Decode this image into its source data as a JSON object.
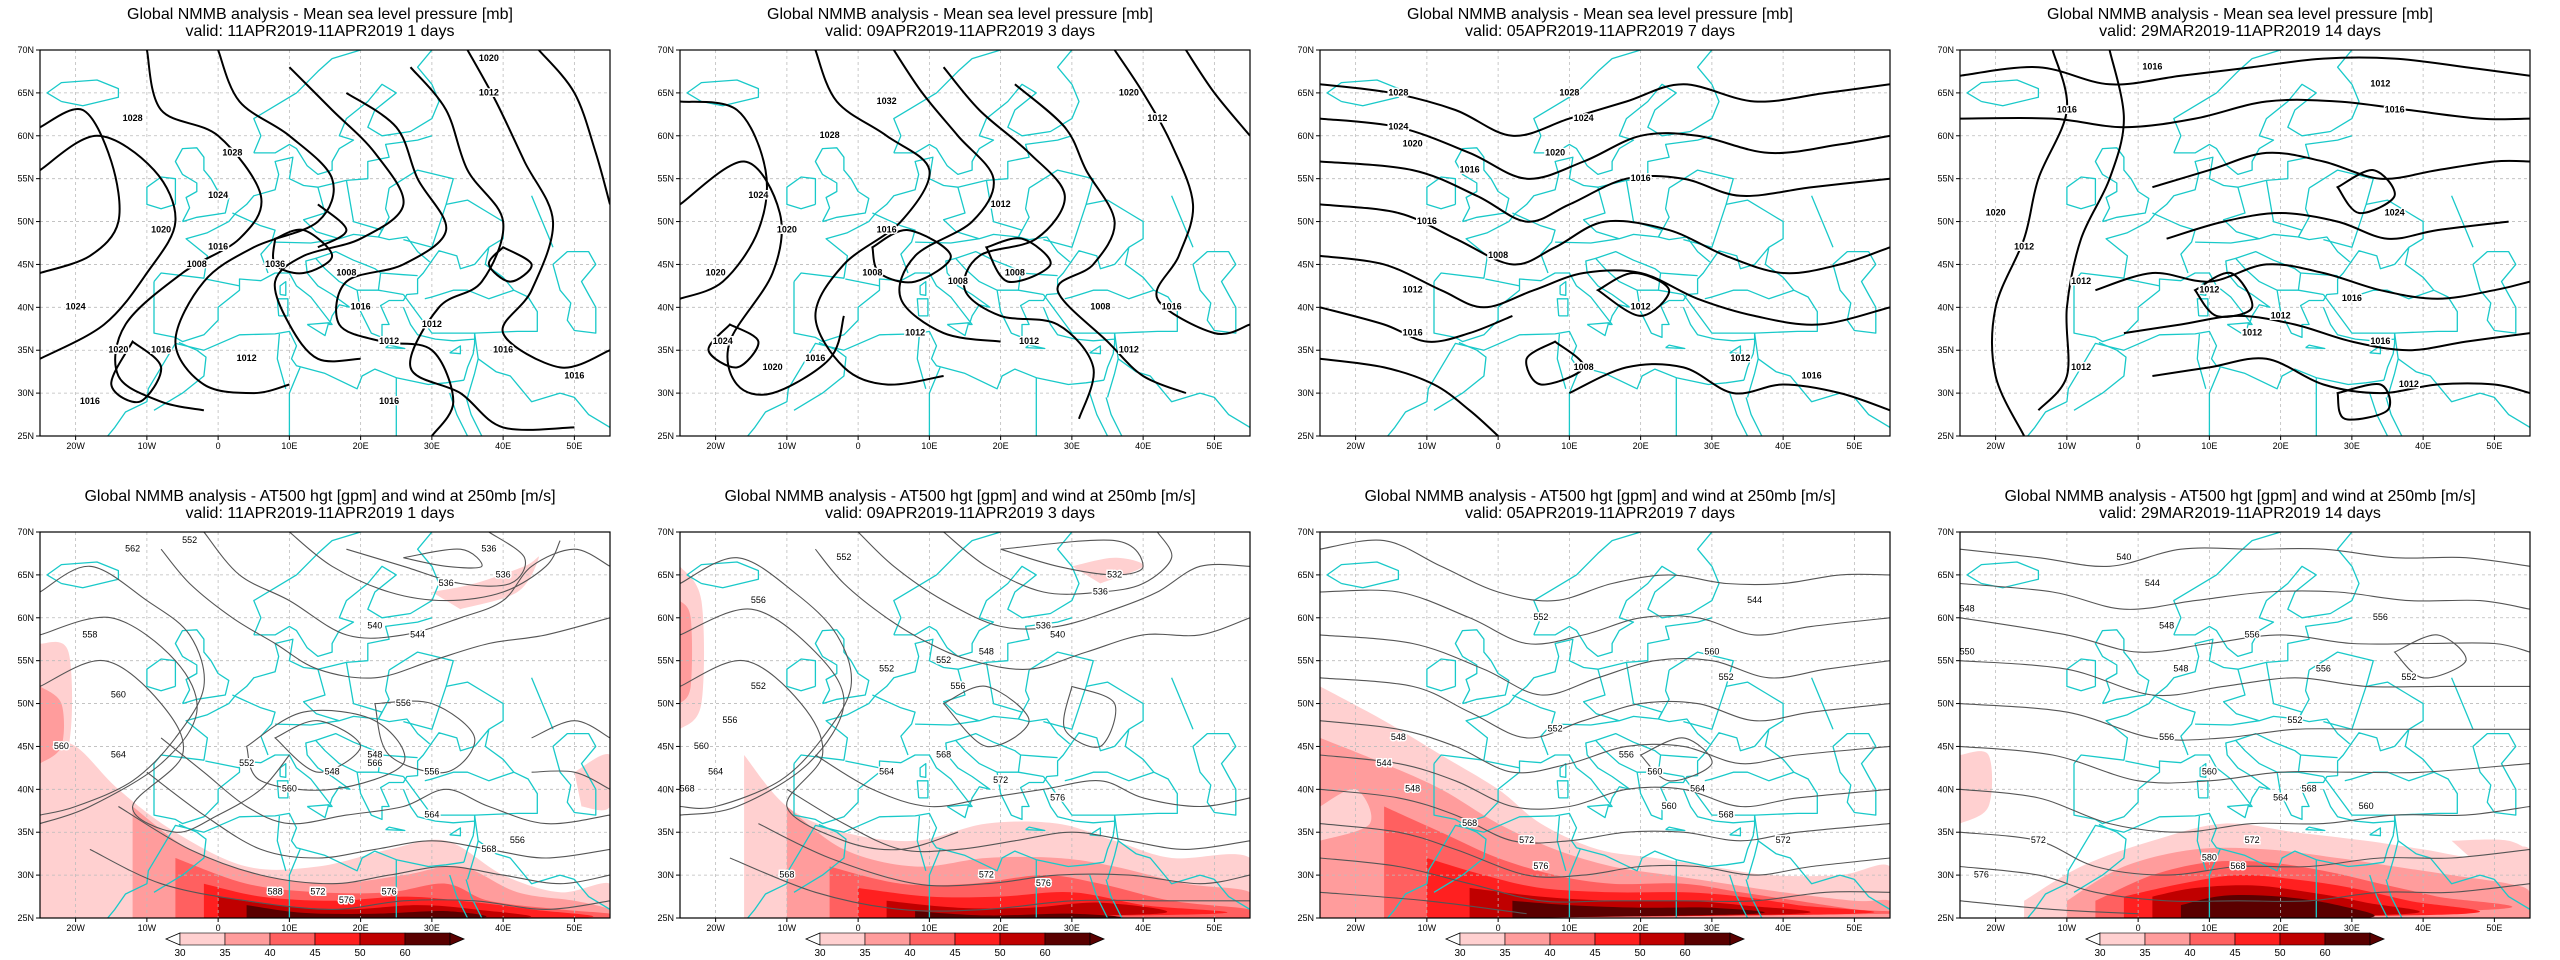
{
  "colors": {
    "coast": "#19c9c9",
    "isobar": "#000000",
    "height": "#555555",
    "grid": "#bbbbbb",
    "wind": [
      "#ffd0d0",
      "#ff9c9c",
      "#ff6060",
      "#ff2020",
      "#c00000",
      "#5a0000"
    ]
  },
  "axes": {
    "lat_ticks": [
      "70N",
      "65N",
      "60N",
      "55N",
      "50N",
      "45N",
      "40N",
      "35N",
      "30N",
      "25N"
    ],
    "lon_ticks": [
      "20W",
      "10W",
      "0",
      "10E",
      "20E",
      "30E",
      "40E",
      "50E"
    ]
  },
  "colorbar": {
    "labels": [
      "30",
      "35",
      "40",
      "45",
      "50",
      "60"
    ]
  },
  "panels": [
    {
      "title": "Global NMMB analysis - Mean sea level pressure [mb]",
      "valid": "valid: 11APR2019-11APR2019  1 days",
      "kind": "slp",
      "labels": [
        "1020",
        "1012",
        "1028",
        "1028",
        "1024",
        "1020",
        "1016",
        "1008",
        "1008",
        "1036",
        "1024",
        "1020",
        "1016",
        "1016",
        "1012",
        "1012",
        "1012",
        "1016",
        "1016",
        "1016",
        "1016"
      ]
    },
    {
      "title": "Global NMMB analysis - Mean sea level pressure [mb]",
      "valid": "valid: 09APR2019-11APR2019  3 days",
      "kind": "slp",
      "labels": [
        "1032",
        "1028",
        "1020",
        "1012",
        "1024",
        "1020",
        "1020",
        "1016",
        "1012",
        "1008",
        "1008",
        "1008",
        "1008",
        "1016",
        "1020",
        "1016",
        "1012",
        "1024",
        "1012",
        "1012"
      ]
    },
    {
      "title": "Global NMMB analysis - Mean sea level pressure [mb]",
      "valid": "valid: 05APR2019-11APR2019  7 days",
      "kind": "slp",
      "labels": [
        "1028",
        "1024",
        "1020",
        "1028",
        "1024",
        "1020",
        "1016",
        "1016",
        "1016",
        "1008",
        "1012",
        "1012",
        "1016",
        "1008",
        "1012",
        "1016"
      ]
    },
    {
      "title": "Global NMMB analysis - Mean sea level pressure [mb]",
      "valid": "valid: 29MAR2019-11APR2019  14 days",
      "kind": "slp",
      "labels": [
        "1016",
        "1016",
        "1012",
        "1016",
        "1024",
        "1020",
        "1012",
        "1012",
        "1012",
        "1012",
        "1016",
        "1016",
        "1012",
        "1012",
        "1012"
      ]
    },
    {
      "title": "Global NMMB analysis - AT500 hgt [gpm] and wind at 250mb [m/s]",
      "valid": "valid: 11APR2019-11APR2019  1 days",
      "kind": "hgt",
      "labels": [
        "552",
        "562",
        "536",
        "536",
        "536",
        "544",
        "540",
        "558",
        "560",
        "548",
        "552",
        "556",
        "564",
        "566",
        "548",
        "556",
        "564",
        "568",
        "560",
        "576",
        "572",
        "576",
        "588",
        "556",
        "560"
      ]
    },
    {
      "title": "Global NMMB analysis - AT500 hgt [gpm] and wind at 250mb [m/s]",
      "valid": "valid: 09APR2019-11APR2019  3 days",
      "kind": "hgt",
      "labels": [
        "552",
        "556",
        "532",
        "536",
        "536",
        "540",
        "548",
        "552",
        "552",
        "556",
        "560",
        "564",
        "568",
        "552",
        "556",
        "564",
        "568",
        "572",
        "576",
        "572",
        "576",
        "568"
      ]
    },
    {
      "title": "Global NMMB analysis - AT500 hgt [gpm] and wind at 250mb [m/s]",
      "valid": "valid: 05APR2019-11APR2019  7 days",
      "kind": "hgt",
      "labels": [
        "552",
        "544",
        "548",
        "552",
        "560",
        "544",
        "548",
        "552",
        "556",
        "560",
        "564",
        "568",
        "572",
        "576",
        "560",
        "568",
        "572"
      ]
    },
    {
      "title": "Global NMMB analysis - AT500 hgt [gpm] and wind at 250mb [m/s]",
      "valid": "valid: 29MAR2019-11APR2019  14 days",
      "kind": "hgt",
      "labels": [
        "540",
        "544",
        "548",
        "548",
        "550",
        "552",
        "556",
        "556",
        "556",
        "548",
        "552",
        "556",
        "560",
        "564",
        "568",
        "572",
        "576",
        "580",
        "568",
        "572",
        "560"
      ]
    }
  ]
}
